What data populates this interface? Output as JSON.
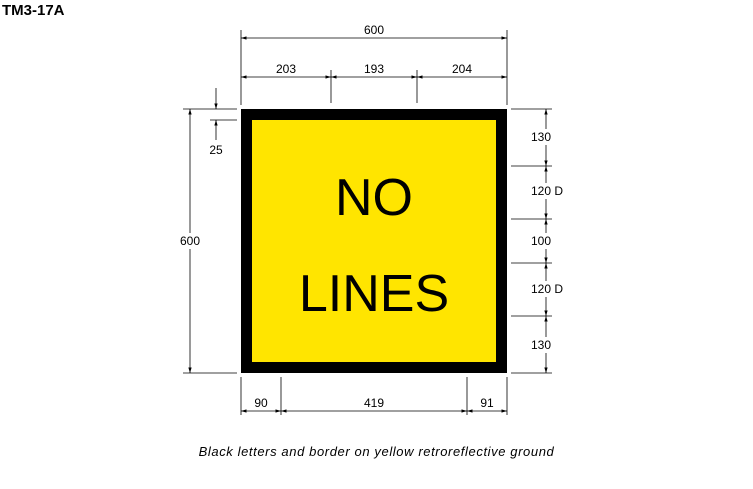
{
  "sign_code": "TM3-17A",
  "legend": {
    "line1": "NO",
    "line2": "LINES"
  },
  "caption": "Black letters and border on yellow retroreflective ground",
  "colors": {
    "ground": "#FFE500",
    "border": "#000000",
    "letters": "#000000"
  },
  "dimensions": {
    "overall_width": "600",
    "overall_height": "600",
    "top_segments": [
      "203",
      "193",
      "204"
    ],
    "bottom_segments": [
      "90",
      "419",
      "91"
    ],
    "border": "25",
    "right_segments": [
      "130",
      "120 D",
      "100",
      "120 D",
      "130"
    ]
  }
}
